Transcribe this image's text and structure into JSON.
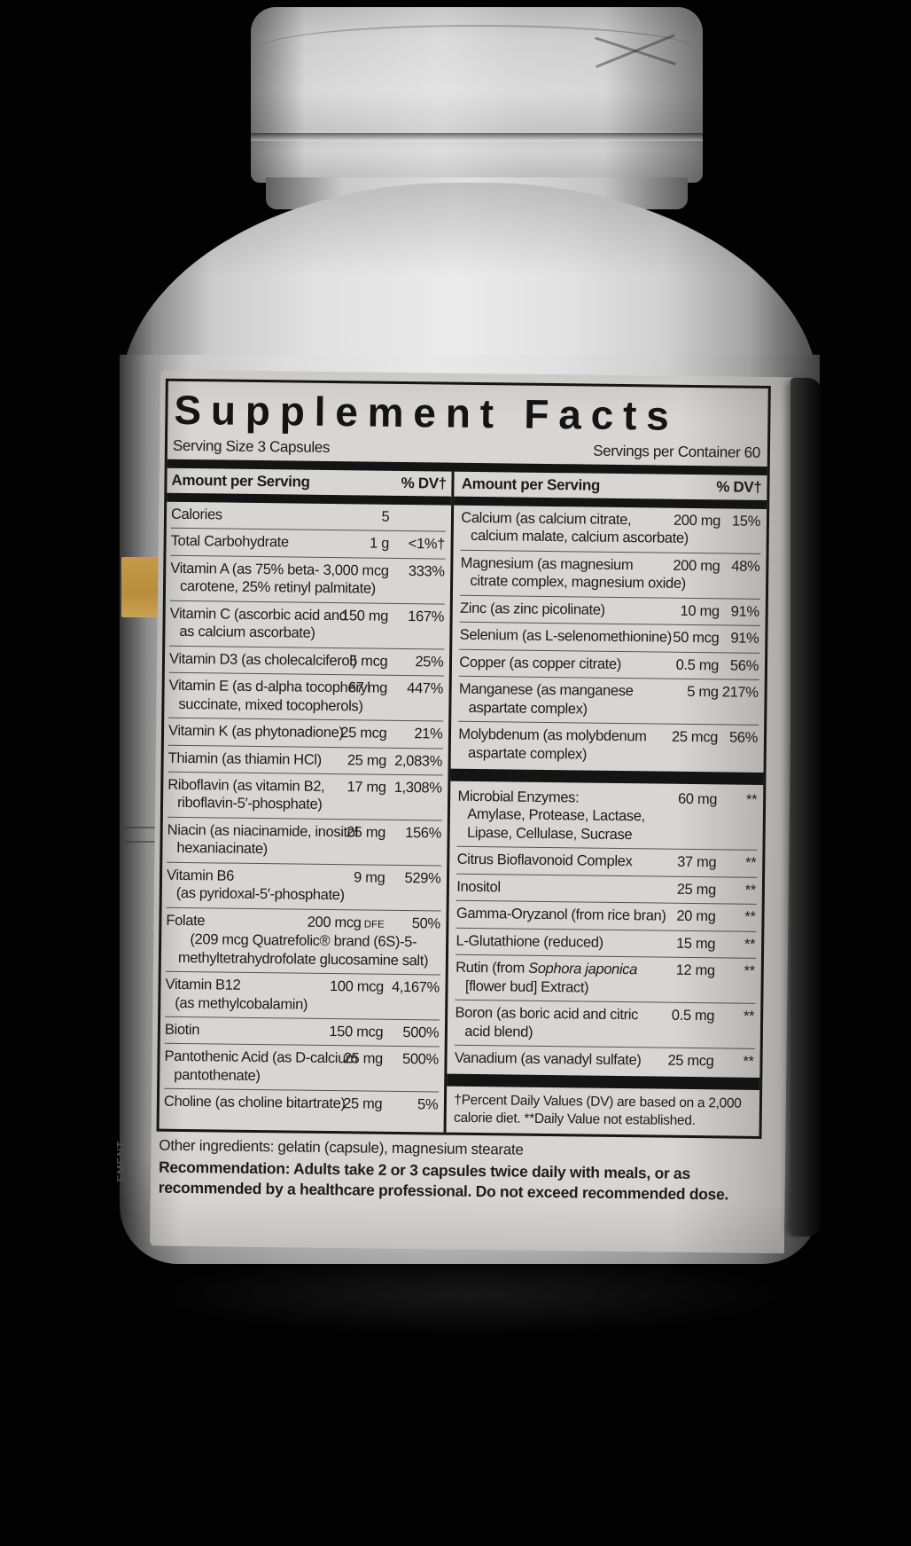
{
  "colors": {
    "background": "#020202",
    "bottle_light": "#e9e9e9",
    "bottle_dark": "#3f3f3f",
    "label_paper": "#d8d6d2",
    "ink": "#141414",
    "gold_patch": "#c49b4a",
    "back_label_strip": "#151515"
  },
  "product": {
    "side_text": "EMENT"
  },
  "label": {
    "title": "Supplement Facts",
    "serving_size": "Serving Size 3 Capsules",
    "servings_per_container": "Servings per Container 60",
    "column_header": {
      "amount": "Amount per Serving",
      "dv": "% DV†"
    },
    "left_rows": [
      {
        "label": "Calories",
        "amount": "5",
        "dv": ""
      },
      {
        "label": "Total Carbohydrate",
        "amount": "1 g",
        "dv": "<1%†"
      },
      {
        "label": "Vitamin A (as 75% beta-",
        "sublines": [
          "carotene, 25% retinyl palmitate)"
        ],
        "amount": "3,000 mcg",
        "dv": "333%"
      },
      {
        "label": "Vitamin C (ascorbic acid and",
        "sublines": [
          "as calcium ascorbate)"
        ],
        "amount": "150 mg",
        "dv": "167%"
      },
      {
        "label": "Vitamin D3 (as cholecalciferol)",
        "amount": "5 mcg",
        "dv": "25%"
      },
      {
        "label": "Vitamin E (as d-alpha tocopheryl",
        "sublines": [
          "succinate, mixed tocopherols)"
        ],
        "amount": "67 mg",
        "dv": "447%"
      },
      {
        "label": "Vitamin K (as phytonadione)",
        "amount": "25 mcg",
        "dv": "21%"
      },
      {
        "label": "Thiamin (as thiamin HCl)",
        "amount": "25 mg",
        "dv": "2,083%"
      },
      {
        "label": "Riboflavin (as vitamin B2,",
        "sublines": [
          "riboflavin-5′-phosphate)"
        ],
        "amount": "17 mg",
        "dv": "1,308%"
      },
      {
        "label": "Niacin (as niacinamide, inositol",
        "sublines": [
          "hexaniacinate)"
        ],
        "amount": "25 mg",
        "dv": "156%"
      },
      {
        "label": "Vitamin B6",
        "sublines": [
          "(as pyridoxal-5′-phosphate)"
        ],
        "amount": "9 mg",
        "dv": "529%"
      },
      {
        "label": "Folate",
        "amount": "200 mcg",
        "amount_small": "DFE",
        "dv": "50%",
        "note": "(209 mcg Quatrefolic® brand (6S)-5-methyltetrahydrofolate glucosamine salt)"
      },
      {
        "label": "Vitamin B12",
        "sublines": [
          "(as methylcobalamin)"
        ],
        "amount": "100 mcg",
        "dv": "4,167%"
      },
      {
        "label": "Biotin",
        "amount": "150 mcg",
        "dv": "500%"
      },
      {
        "label": "Pantothenic Acid (as D-calcium",
        "sublines": [
          "pantothenate)"
        ],
        "amount": "25 mg",
        "dv": "500%"
      },
      {
        "label": "Choline (as choline bitartrate)",
        "amount": "25 mg",
        "dv": "5%"
      }
    ],
    "right_rows": [
      {
        "label": "Calcium (as calcium citrate,",
        "sublines": [
          "calcium malate, calcium ascorbate)"
        ],
        "amount": "200 mg",
        "dv": "15%"
      },
      {
        "label": "Magnesium (as magnesium",
        "sublines": [
          "citrate complex, magnesium oxide)"
        ],
        "amount": "200 mg",
        "dv": "48%"
      },
      {
        "label": "Zinc (as zinc picolinate)",
        "amount": "10 mg",
        "dv": "91%"
      },
      {
        "label": "Selenium (as L-selenomethionine)",
        "amount": "50 mcg",
        "dv": "91%"
      },
      {
        "label": "Copper (as copper citrate)",
        "amount": "0.5 mg",
        "dv": "56%"
      },
      {
        "label": "Manganese (as manganese",
        "sublines": [
          "aspartate complex)"
        ],
        "amount": "5 mg",
        "dv": "217%"
      },
      {
        "label": "Molybdenum (as molybdenum",
        "sublines": [
          "aspartate complex)"
        ],
        "amount": "25 mcg",
        "dv": "56%"
      },
      {
        "type": "bar"
      },
      {
        "label": "Microbial Enzymes:",
        "sublines": [
          "Amylase, Protease, Lactase,",
          "Lipase, Cellulase, Sucrase"
        ],
        "amount": "60 mg",
        "dv": "**"
      },
      {
        "label": "Citrus Bioflavonoid Complex",
        "amount": "37 mg",
        "dv": "**"
      },
      {
        "label": "Inositol",
        "amount": "25 mg",
        "dv": "**"
      },
      {
        "label": "Gamma-Oryzanol (from rice bran)",
        "amount": "20 mg",
        "dv": "**"
      },
      {
        "label": "L-Glutathione (reduced)",
        "amount": "15 mg",
        "dv": "**"
      },
      {
        "label_parts": [
          {
            "text": "Rutin (from "
          },
          {
            "text": "Sophora japonica",
            "italic": true
          }
        ],
        "sublines": [
          "[flower bud] Extract)"
        ],
        "amount": "12 mg",
        "dv": "**"
      },
      {
        "label": "Boron (as boric acid and citric",
        "sublines": [
          "acid blend)"
        ],
        "amount": "0.5 mg",
        "dv": "**"
      },
      {
        "label": "Vanadium (as vanadyl sulfate)",
        "amount": "25 mcg",
        "dv": "**"
      },
      {
        "type": "bar"
      }
    ],
    "footnote": "†Percent Daily Values (DV) are based on a 2,000 calorie diet. **Daily Value not established.",
    "other_ingredients": {
      "lead": "Other ingredients:",
      "text": " gelatin (capsule), magnesium stearate"
    },
    "recommendation": {
      "lead": "Recommendation:",
      "text": " Adults take 2 or 3 capsules twice daily with meals, or as recommended by a healthcare professional. Do not exceed recommended dose."
    }
  }
}
